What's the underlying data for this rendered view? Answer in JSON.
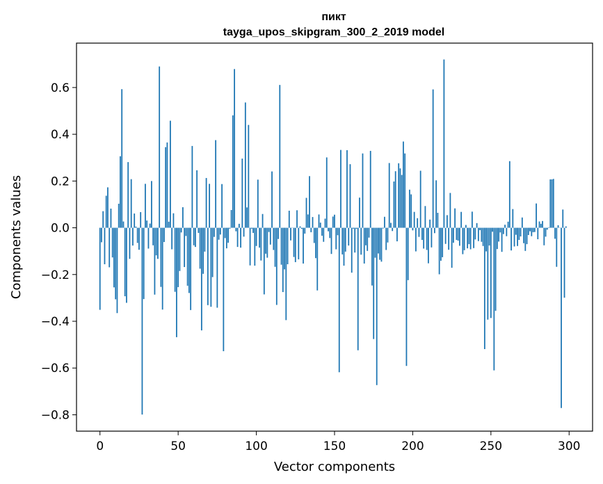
{
  "chart_data": {
    "type": "bar",
    "title": "пикт",
    "subtitle": "tayga_upos_skipgram_300_2_2019 model",
    "xlabel": "Vector components",
    "ylabel": "Components values",
    "xlim": [
      -15,
      315
    ],
    "ylim": [
      -0.87,
      0.79
    ],
    "xticks": [
      0,
      50,
      100,
      150,
      200,
      250,
      300
    ],
    "yticks": [
      -0.8,
      -0.6,
      -0.4,
      -0.2,
      0.0,
      0.2,
      0.4,
      0.6
    ],
    "ytick_labels": [
      "−0.8",
      "−0.6",
      "−0.4",
      "−0.2",
      "0.0",
      "0.2",
      "0.4",
      "0.6"
    ],
    "bar_color": "#1f77b4",
    "grid": false,
    "series": [
      {
        "name": "components",
        "x_start": 0,
        "values": [
          -0.351,
          -0.062,
          0.071,
          -0.156,
          0.137,
          0.173,
          -0.169,
          0.082,
          -0.127,
          -0.255,
          -0.306,
          -0.365,
          0.103,
          0.306,
          0.593,
          0.027,
          -0.293,
          -0.321,
          0.281,
          -0.133,
          0.208,
          -0.076,
          0.061,
          0.005,
          -0.065,
          -0.094,
          0.067,
          -0.799,
          -0.305,
          0.188,
          0.031,
          -0.089,
          0.018,
          0.2,
          -0.075,
          -0.286,
          -0.118,
          -0.133,
          0.69,
          -0.253,
          -0.35,
          -0.061,
          0.345,
          0.365,
          0.026,
          0.458,
          -0.092,
          0.062,
          -0.274,
          -0.468,
          -0.254,
          -0.185,
          -0.02,
          0.088,
          -0.168,
          -0.035,
          -0.248,
          -0.279,
          -0.352,
          0.35,
          -0.075,
          -0.082,
          0.246,
          -0.022,
          -0.175,
          -0.439,
          -0.197,
          -0.102,
          0.213,
          -0.331,
          0.188,
          -0.338,
          -0.211,
          -0.039,
          0.375,
          -0.342,
          -0.051,
          -0.029,
          0.187,
          -0.528,
          -0.044,
          -0.088,
          -0.064,
          -0.004,
          0.076,
          0.481,
          0.679,
          -0.015,
          -0.082,
          0.017,
          -0.085,
          0.296,
          -0.038,
          0.536,
          0.087,
          0.44,
          -0.161,
          -0.004,
          -0.022,
          -0.162,
          -0.078,
          0.206,
          -0.085,
          -0.14,
          0.059,
          -0.285,
          -0.111,
          -0.128,
          -0.018,
          -0.072,
          0.241,
          -0.095,
          -0.167,
          -0.33,
          -0.048,
          0.611,
          -0.158,
          -0.275,
          -0.178,
          -0.395,
          -0.156,
          0.073,
          -0.054,
          -0.001,
          -0.125,
          -0.147,
          0.075,
          -0.135,
          0.006,
          -0.005,
          -0.153,
          -0.025,
          0.128,
          0.057,
          0.221,
          -0.019,
          0.046,
          -0.065,
          -0.13,
          -0.268,
          0.057,
          0.022,
          -0.034,
          -0.06,
          0.039,
          0.301,
          -0.015,
          -0.044,
          -0.112,
          0.048,
          0.056,
          -0.092,
          -0.032,
          -0.618,
          0.333,
          -0.114,
          -0.162,
          -0.102,
          0.332,
          -0.076,
          0.272,
          -0.192,
          -0.004,
          -0.106,
          -0.005,
          -0.524,
          0.129,
          -0.115,
          0.318,
          -0.153,
          -0.075,
          -0.099,
          -0.042,
          0.329,
          -0.247,
          -0.476,
          -0.128,
          -0.673,
          -0.11,
          -0.137,
          -0.145,
          -0.003,
          0.047,
          -0.095,
          -0.063,
          0.277,
          0.021,
          -0.014,
          0.198,
          0.242,
          -0.058,
          0.276,
          0.254,
          0.226,
          0.369,
          0.318,
          -0.591,
          -0.224,
          0.163,
          0.143,
          -0.011,
          0.068,
          -0.101,
          0.041,
          -0.039,
          0.244,
          -0.052,
          -0.089,
          0.093,
          -0.095,
          -0.152,
          0.035,
          -0.084,
          0.592,
          -0.023,
          0.203,
          0.064,
          -0.199,
          -0.141,
          -0.126,
          0.72,
          -0.069,
          0.054,
          -0.094,
          0.149,
          -0.171,
          -0.064,
          0.083,
          -0.052,
          -0.055,
          -0.077,
          0.068,
          -0.113,
          -0.096,
          0.012,
          -0.088,
          -0.07,
          -0.092,
          0.069,
          -0.087,
          -0.05,
          0.02,
          -0.057,
          -0.01,
          -0.06,
          -0.078,
          -0.519,
          -0.101,
          -0.393,
          -0.076,
          -0.386,
          -0.017,
          -0.61,
          -0.355,
          -0.091,
          -0.059,
          -0.02,
          -0.103,
          -0.027,
          0.013,
          -0.036,
          0.026,
          0.285,
          -0.097,
          0.08,
          -0.08,
          -0.03,
          -0.078,
          -0.052,
          -0.037,
          0.044,
          -0.066,
          -0.099,
          -0.07,
          -0.031,
          -0.015,
          -0.036,
          -0.019,
          -0.018,
          0.104,
          -0.049,
          0.027,
          0.017,
          0.029,
          -0.075,
          -0.038,
          -0.008,
          0.002,
          0.207,
          0.207,
          0.209,
          -0.047,
          -0.167,
          0.011,
          0.0,
          -0.771,
          0.078,
          -0.299,
          0.006
        ]
      }
    ]
  }
}
